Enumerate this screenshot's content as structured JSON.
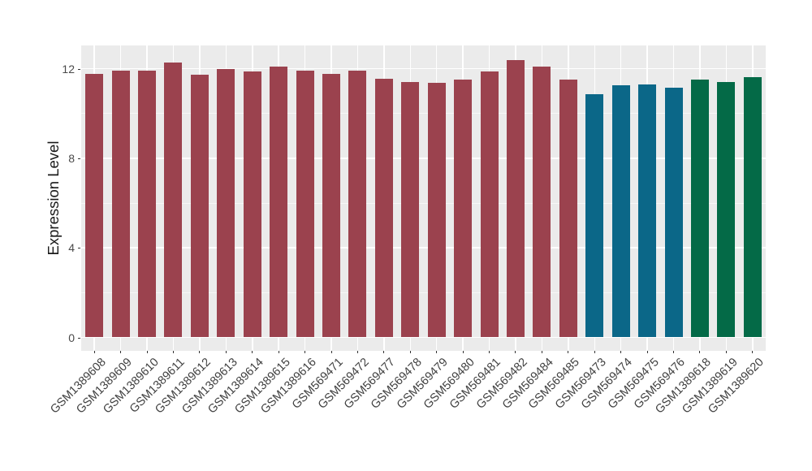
{
  "chart_data": {
    "type": "bar",
    "title": "",
    "xlabel": "",
    "ylabel": "Expression Level",
    "ylim": [
      0,
      13
    ],
    "yticks_major": [
      0,
      4,
      8,
      12
    ],
    "yticks_minor": [
      2,
      6,
      10
    ],
    "grid": "on",
    "legend_position": "none",
    "categories": [
      "GSM1389608",
      "GSM1389609",
      "GSM1389610",
      "GSM1389611",
      "GSM1389612",
      "GSM1389613",
      "GSM1389614",
      "GSM1389615",
      "GSM1389616",
      "GSM569471",
      "GSM569472",
      "GSM569477",
      "GSM569478",
      "GSM569479",
      "GSM569480",
      "GSM569481",
      "GSM569482",
      "GSM569484",
      "GSM569485",
      "GSM569473",
      "GSM569474",
      "GSM569475",
      "GSM569476",
      "GSM1389618",
      "GSM1389619",
      "GSM1389620"
    ],
    "values": [
      11.77,
      11.92,
      11.92,
      12.27,
      11.74,
      11.98,
      11.88,
      12.08,
      11.92,
      11.77,
      11.92,
      11.54,
      11.4,
      11.36,
      11.5,
      11.88,
      12.37,
      12.1,
      11.52,
      10.87,
      11.26,
      11.28,
      11.16,
      11.5,
      11.42,
      11.61
    ],
    "groups": [
      "red",
      "red",
      "red",
      "red",
      "red",
      "red",
      "red",
      "red",
      "red",
      "red",
      "red",
      "red",
      "red",
      "red",
      "red",
      "red",
      "red",
      "red",
      "red",
      "blue",
      "blue",
      "blue",
      "blue",
      "green",
      "green",
      "green"
    ],
    "group_colors": {
      "red": "#9B424E",
      "blue": "#0B6788",
      "green": "#046A47"
    },
    "theme_colors": {
      "panel_background": "#EBEBEB",
      "outer_background": "#FFFFFF",
      "grid": "#FFFFFF",
      "axis_text": "#4A4A4A",
      "axis_title": "#1A1A1A",
      "tick_mark": "#333333"
    }
  }
}
